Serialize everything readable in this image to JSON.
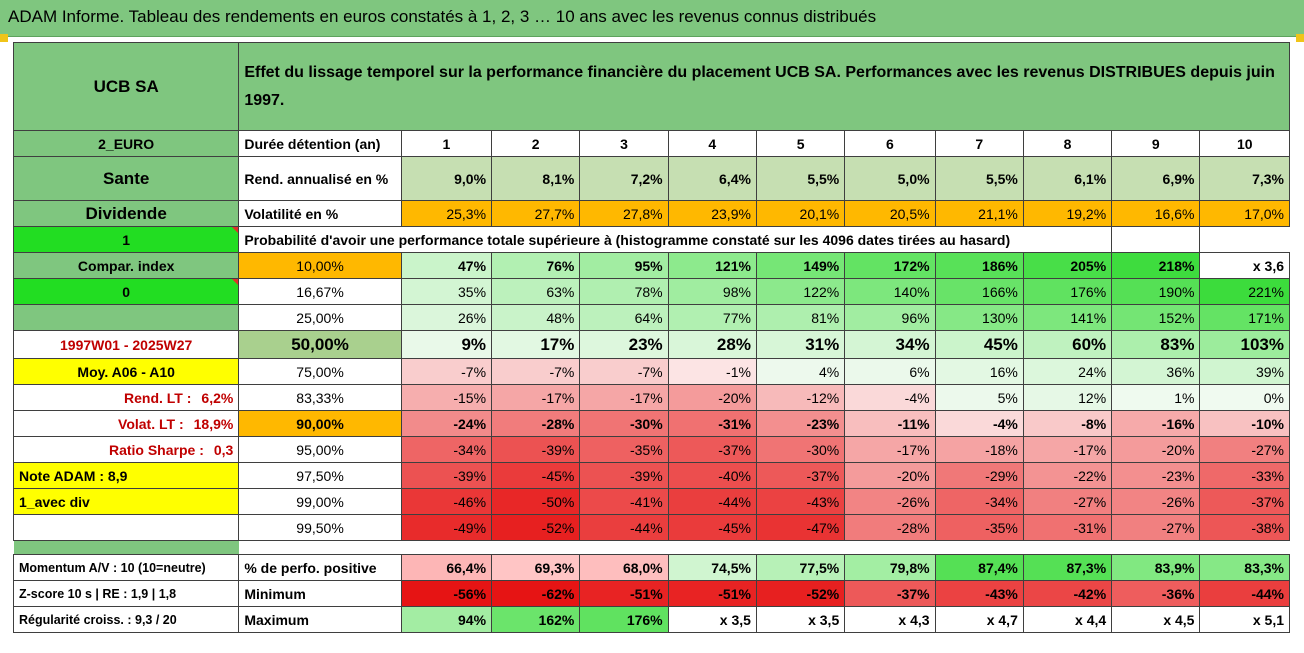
{
  "title": "ADAM Informe. Tableau des rendements en euros constatés à 1, 2, 3 … 10 ans avec les revenus connus distribués",
  "company": "UCB SA",
  "description": "Effet du lissage temporel sur la performance financière du placement UCB SA. Performances avec les revenus DISTRIBUES depuis juin 1997.",
  "holding_label": "Durée détention (an)",
  "years": [
    "1",
    "2",
    "3",
    "4",
    "5",
    "6",
    "7",
    "8",
    "9",
    "10"
  ],
  "probability_header": "Probabilité d'avoir une performance totale supérieure à (histogramme constaté sur les 4096 dates tirées au hasard)",
  "rows": [
    {
      "left": "2_EURO",
      "label": "Durée détention (an)"
    },
    {
      "left": "Sante",
      "label": "Rend. annualisé en %",
      "values": [
        "9,0%",
        "8,1%",
        "7,2%",
        "6,4%",
        "5,5%",
        "5,0%",
        "5,5%",
        "6,1%",
        "6,9%",
        "7,3%"
      ]
    },
    {
      "left": "Dividende",
      "label": "Volatilité en %",
      "values": [
        "25,3%",
        "27,7%",
        "27,8%",
        "23,9%",
        "20,1%",
        "20,5%",
        "21,1%",
        "19,2%",
        "16,6%",
        "17,0%"
      ]
    },
    {
      "left": "1"
    },
    {
      "left": "Compar. index",
      "label": "10,00%",
      "values": [
        "47%",
        "76%",
        "95%",
        "121%",
        "149%",
        "172%",
        "186%",
        "205%",
        "218%",
        "x 3,6"
      ]
    },
    {
      "left": "0",
      "label": "16,67%",
      "values": [
        "35%",
        "63%",
        "78%",
        "98%",
        "122%",
        "140%",
        "166%",
        "176%",
        "190%",
        "221%"
      ]
    },
    {
      "left": "",
      "label": "25,00%",
      "values": [
        "26%",
        "48%",
        "64%",
        "77%",
        "81%",
        "96%",
        "130%",
        "141%",
        "152%",
        "171%"
      ]
    },
    {
      "left": "1997W01 - 2025W27",
      "label": "50,00%",
      "values": [
        "9%",
        "17%",
        "23%",
        "28%",
        "31%",
        "34%",
        "45%",
        "60%",
        "83%",
        "103%"
      ]
    },
    {
      "left": "Moy. A06 - A10",
      "label": "75,00%",
      "values": [
        "-7%",
        "-7%",
        "-7%",
        "-1%",
        "4%",
        "6%",
        "16%",
        "24%",
        "36%",
        "39%"
      ]
    },
    {
      "left": "Rend. LT :",
      "left_value": "6,2%",
      "label": "83,33%",
      "values": [
        "-15%",
        "-17%",
        "-17%",
        "-20%",
        "-12%",
        "-4%",
        "5%",
        "12%",
        "1%",
        "0%"
      ]
    },
    {
      "left": "Volat. LT :",
      "left_value": "18,9%",
      "label": "90,00%",
      "values": [
        "-24%",
        "-28%",
        "-30%",
        "-31%",
        "-23%",
        "-11%",
        "-4%",
        "-8%",
        "-16%",
        "-10%"
      ]
    },
    {
      "left": "Ratio Sharpe :",
      "left_value": "0,3",
      "label": "95,00%",
      "values": [
        "-34%",
        "-39%",
        "-35%",
        "-37%",
        "-30%",
        "-17%",
        "-18%",
        "-17%",
        "-20%",
        "-27%"
      ]
    },
    {
      "left": "Note ADAM : 8,9",
      "label": "97,50%",
      "values": [
        "-39%",
        "-45%",
        "-39%",
        "-40%",
        "-37%",
        "-20%",
        "-29%",
        "-22%",
        "-23%",
        "-33%"
      ]
    },
    {
      "left": "1_avec div",
      "label": "99,00%",
      "values": [
        "-46%",
        "-50%",
        "-41%",
        "-44%",
        "-43%",
        "-26%",
        "-34%",
        "-27%",
        "-26%",
        "-37%"
      ]
    },
    {
      "left": "",
      "label": "99,50%",
      "values": [
        "-49%",
        "-52%",
        "-44%",
        "-45%",
        "-47%",
        "-28%",
        "-35%",
        "-31%",
        "-27%",
        "-38%"
      ]
    }
  ],
  "bottom_rows": [
    {
      "left": "Momentum A/V : 10 (10=neutre)",
      "label": "% de perfo. positive",
      "values": [
        "66,4%",
        "69,3%",
        "68,0%",
        "74,5%",
        "77,5%",
        "79,8%",
        "87,4%",
        "87,3%",
        "83,9%",
        "83,3%"
      ]
    },
    {
      "left": "Z-score 10 s | RE : 1,9 | 1,8",
      "label": "Minimum",
      "values": [
        "-56%",
        "-62%",
        "-51%",
        "-51%",
        "-52%",
        "-37%",
        "-43%",
        "-42%",
        "-36%",
        "-44%"
      ]
    },
    {
      "left": "Régularité croiss. : 9,3 / 20",
      "label": "Maximum",
      "values": [
        "94%",
        "162%",
        "176%",
        "x 3,5",
        "x 3,5",
        "x 4,3",
        "x 4,7",
        "x 4,4",
        "x 4,5",
        "x 5,1"
      ]
    }
  ],
  "colors": {
    "header_green": "#7fc67f",
    "light_green": "#c6dfb2",
    "orange": "#ffb800",
    "bright_green": "#22dd22",
    "yellow": "#ffff00",
    "dark_red_text": "#c00000"
  }
}
